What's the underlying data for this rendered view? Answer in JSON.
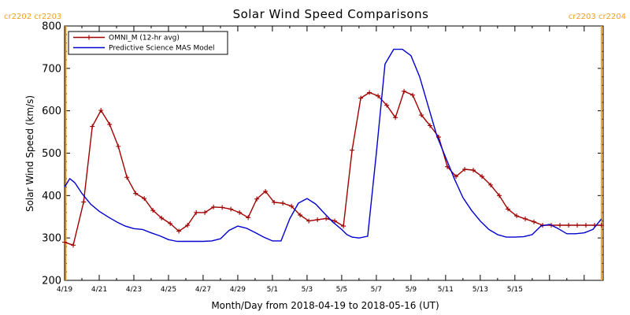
{
  "chart_data": {
    "type": "line",
    "title": "Solar Wind Speed Comparisons",
    "xlabel": "Month/Day from 2018-04-19 to 2018-05-16 (UT)",
    "ylabel": "Solar Wind Speed (km/s)",
    "ylim": [
      200,
      800
    ],
    "xlim_days": [
      0,
      31.1
    ],
    "y_ticks": [
      "200",
      "300",
      "400",
      "500",
      "600",
      "700",
      "800"
    ],
    "x_ticks": [
      {
        "day": 0,
        "label": "4/19"
      },
      {
        "day": 2,
        "label": "4/21"
      },
      {
        "day": 4,
        "label": "4/23"
      },
      {
        "day": 6,
        "label": "4/25"
      },
      {
        "day": 8,
        "label": "4/27"
      },
      {
        "day": 10,
        "label": "4/29"
      },
      {
        "day": 12,
        "label": "5/1"
      },
      {
        "day": 14,
        "label": "5/3"
      },
      {
        "day": 16,
        "label": "5/5"
      },
      {
        "day": 18,
        "label": "5/7"
      },
      {
        "day": 20,
        "label": "5/9"
      },
      {
        "day": 22,
        "label": "5/11"
      },
      {
        "day": 24,
        "label": "5/13"
      },
      {
        "day": 26,
        "label": "5/15"
      }
    ],
    "carrington": {
      "left_label": "cr2202 cr2203",
      "right_label": "cr2203 cr2204",
      "left_day": 0.0,
      "right_day": 31.0,
      "color": "#f0a020"
    },
    "legend": {
      "placement": "top-left"
    },
    "series": [
      {
        "name": "OMNI_M (12-hr avg)",
        "color": "#a00000",
        "markers": true,
        "x": [
          0.0,
          0.5,
          1.1,
          1.6,
          2.1,
          2.6,
          3.1,
          3.6,
          4.1,
          4.6,
          5.1,
          5.6,
          6.1,
          6.6,
          7.1,
          7.6,
          8.1,
          8.6,
          9.1,
          9.6,
          10.1,
          10.6,
          11.1,
          11.6,
          12.1,
          12.6,
          13.1,
          13.6,
          14.1,
          14.6,
          15.1,
          15.6,
          16.1,
          16.6,
          17.1,
          17.6,
          18.1,
          18.6,
          19.1,
          19.6,
          20.1,
          20.6,
          21.1,
          21.6,
          22.1,
          22.6,
          23.1,
          23.6,
          24.1,
          24.6,
          25.1,
          25.6,
          26.1,
          26.6,
          27.1,
          27.6,
          28.1,
          28.6,
          29.1,
          29.6,
          30.1,
          30.6,
          31.0
        ],
        "y": [
          290,
          283,
          385,
          563,
          601,
          568,
          516,
          443,
          405,
          393,
          365,
          347,
          334,
          316,
          330,
          360,
          360,
          373,
          372,
          368,
          360,
          348,
          392,
          410,
          384,
          382,
          375,
          354,
          340,
          343,
          346,
          340,
          328,
          507,
          630,
          643,
          635,
          613,
          584,
          646,
          637,
          590,
          565,
          538,
          468,
          445,
          462,
          460,
          445,
          425,
          400,
          368,
          352,
          345,
          338,
          330,
          330,
          330,
          330,
          330,
          330,
          330,
          330
        ]
      },
      {
        "name": "Predictive Science MAS Model",
        "color": "#0000d0",
        "markers": false,
        "x": [
          0.0,
          0.3,
          0.6,
          1.0,
          1.5,
          2.0,
          2.5,
          3.0,
          3.5,
          4.0,
          4.5,
          5.0,
          5.5,
          6.0,
          6.5,
          7.0,
          7.5,
          8.0,
          8.5,
          9.0,
          9.5,
          10.0,
          10.5,
          11.0,
          11.5,
          12.0,
          12.5,
          13.0,
          13.5,
          14.0,
          14.5,
          15.0,
          15.5,
          16.0,
          16.3,
          16.6,
          17.0,
          17.5,
          18.0,
          18.5,
          19.0,
          19.5,
          20.0,
          20.5,
          21.0,
          21.5,
          22.0,
          22.5,
          23.0,
          23.5,
          24.0,
          24.5,
          25.0,
          25.5,
          26.0,
          26.5,
          27.0,
          27.5,
          28.0,
          28.5,
          29.0,
          29.5,
          30.0,
          30.5,
          31.0
        ],
        "y": [
          420,
          440,
          430,
          405,
          380,
          363,
          350,
          338,
          328,
          322,
          320,
          312,
          305,
          296,
          292,
          292,
          292,
          292,
          293,
          298,
          318,
          328,
          323,
          313,
          302,
          293,
          293,
          345,
          382,
          393,
          380,
          358,
          337,
          320,
          308,
          302,
          300,
          304,
          500,
          710,
          745,
          745,
          730,
          680,
          610,
          540,
          490,
          440,
          395,
          365,
          340,
          320,
          308,
          302,
          302,
          303,
          308,
          328,
          332,
          322,
          310,
          310,
          312,
          320,
          345
        ]
      }
    ]
  }
}
